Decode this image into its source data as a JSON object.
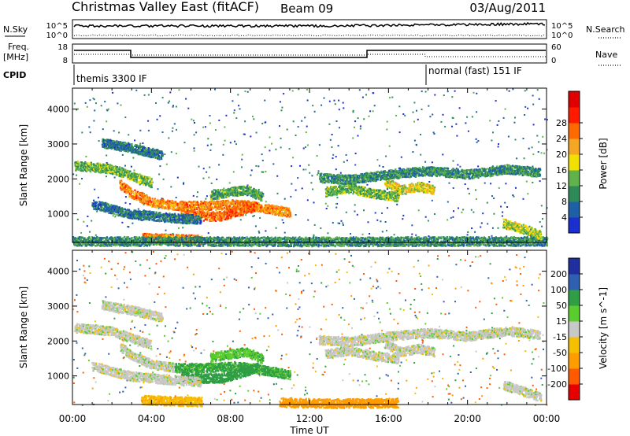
{
  "header": {
    "station": "Christmas Valley East (fitACF)",
    "beam": "Beam 09",
    "date": "03/Aug/2011"
  },
  "strips": {
    "nsky_label": "N.Sky",
    "nsky_ticks": [
      "10^5",
      "10^0"
    ],
    "nsearch_label": "N.Search",
    "nsearch_ticks": [
      "10^5",
      "10^0"
    ],
    "freq_label_1": "Freq.",
    "freq_label_2": "[MHz]",
    "freq_ticks": [
      "18",
      "8"
    ],
    "nave_label": "Nave",
    "nave_ticks": [
      "60",
      "0"
    ],
    "cpid_label": "CPID",
    "modes": [
      {
        "label": "themis 3300 IF"
      },
      {
        "label": "normal (fast) 151 IF"
      }
    ]
  },
  "time_axis": {
    "xlabel": "Time UT",
    "ticks": [
      "00:00",
      "04:00",
      "08:00",
      "12:00",
      "16:00",
      "20:00",
      "00:00"
    ]
  },
  "colors": {
    "power": [
      "#1a2fd0",
      "#1f5fa8",
      "#2e8b57",
      "#5fb34a",
      "#f2e000",
      "#f5a623",
      "#ff6a00",
      "#ff1a00",
      "#e00000"
    ],
    "velocity": [
      "#e60000",
      "#ff5a00",
      "#ff9d00",
      "#f5c000",
      "#c8c8c8",
      "#5bcc2e",
      "#2f9e44",
      "#2f5fb0",
      "#1f2fa0"
    ]
  },
  "chart_data": [
    {
      "type": "heatmap",
      "name": "power",
      "xlabel": "",
      "ylabel": "Slant Range [km]",
      "xlim": [
        0,
        24
      ],
      "ylim": [
        180,
        4600
      ],
      "yticks": [
        1000,
        2000,
        3000,
        4000
      ],
      "ytick_labels": [
        "1000",
        "2000",
        "3000",
        "4000"
      ],
      "colorbar": {
        "label": "Power [dB]",
        "ticks": [
          4,
          8,
          12,
          16,
          20,
          24,
          28
        ],
        "tick_labels": [
          "4",
          "8",
          "12",
          "16",
          "20",
          "24",
          "28"
        ],
        "range": [
          0,
          32
        ]
      },
      "bands": [
        {
          "t": [
            0.1,
            2.0,
            4.0
          ],
          "r": [
            2400,
            2300,
            1900
          ],
          "val": 14
        },
        {
          "t": [
            2.4,
            3.0,
            4.0,
            5.2,
            7.0,
            8.2,
            9.0,
            10.0,
            11.0
          ],
          "r": [
            1850,
            1600,
            1350,
            1250,
            1250,
            1300,
            1250,
            1150,
            1050
          ],
          "val": 24
        },
        {
          "t": [
            5.5,
            6.5,
            7.5,
            8.5,
            9.3
          ],
          "r": [
            1000,
            950,
            950,
            1100,
            1250
          ],
          "val": 26
        },
        {
          "t": [
            7.0,
            8.0,
            8.8,
            9.6
          ],
          "r": [
            1550,
            1650,
            1700,
            1500
          ],
          "val": 12
        },
        {
          "t": [
            1.0,
            3.0,
            5.0,
            6.5
          ],
          "r": [
            1300,
            1000,
            900,
            850
          ],
          "val": 8
        },
        {
          "t": [
            3.5,
            5.0,
            6.5
          ],
          "r": [
            330,
            300,
            280
          ],
          "val": 24
        },
        {
          "t": [
            0.0,
            6.0,
            12.0,
            18.0,
            24.0
          ],
          "r": [
            230,
            230,
            220,
            230,
            230
          ],
          "val": 10
        },
        {
          "t": [
            12.8,
            14.0,
            15.2,
            16.5
          ],
          "r": [
            1650,
            1750,
            1600,
            1500
          ],
          "val": 14
        },
        {
          "t": [
            15.8,
            16.6,
            17.5,
            18.3
          ],
          "r": [
            1950,
            1700,
            1800,
            1700
          ],
          "val": 18
        },
        {
          "t": [
            12.5,
            14.0,
            16.0,
            18.0,
            20.0,
            22.0,
            23.6
          ],
          "r": [
            2050,
            2000,
            2150,
            2250,
            2150,
            2300,
            2200
          ],
          "val": 10
        },
        {
          "t": [
            21.8,
            22.4,
            23.0,
            23.7
          ],
          "r": [
            750,
            650,
            550,
            400
          ],
          "val": 16
        },
        {
          "t": [
            1.5,
            3.0,
            4.5
          ],
          "r": [
            3050,
            2900,
            2700
          ],
          "val": 8
        }
      ]
    },
    {
      "type": "heatmap",
      "name": "velocity",
      "xlabel": "Time UT",
      "ylabel": "Slant Range [km]",
      "xlim": [
        0,
        24
      ],
      "ylim": [
        180,
        4600
      ],
      "yticks": [
        1000,
        2000,
        3000,
        4000
      ],
      "ytick_labels": [
        "1000",
        "2000",
        "3000",
        "4000"
      ],
      "colorbar": {
        "label": "Velocity [m s^-1]",
        "ticks": [
          -200,
          -100,
          -50,
          -15,
          15,
          50,
          100,
          200
        ],
        "tick_labels": [
          "-200",
          "-100",
          "-50",
          "-15",
          "15",
          "50",
          "100",
          "200"
        ],
        "range": [
          -250,
          250
        ]
      },
      "bands": [
        {
          "t": [
            0.1,
            2.0,
            4.0
          ],
          "r": [
            2400,
            2300,
            1900
          ],
          "val": 0
        },
        {
          "t": [
            2.4,
            3.0,
            4.0,
            5.2
          ],
          "r": [
            1850,
            1600,
            1350,
            1250
          ],
          "val": 0
        },
        {
          "t": [
            5.2,
            7.0,
            8.2,
            9.0,
            10.0,
            11.0
          ],
          "r": [
            1250,
            1250,
            1300,
            1250,
            1150,
            1050
          ],
          "val": 60
        },
        {
          "t": [
            5.5,
            6.5,
            7.5,
            8.5,
            9.3
          ],
          "r": [
            1000,
            950,
            950,
            1100,
            1250
          ],
          "val": 70
        },
        {
          "t": [
            7.0,
            8.0,
            8.8,
            9.6
          ],
          "r": [
            1550,
            1650,
            1700,
            1500
          ],
          "val": 40
        },
        {
          "t": [
            1.0,
            3.0,
            5.0,
            6.5
          ],
          "r": [
            1300,
            1000,
            900,
            850
          ],
          "val": 0
        },
        {
          "t": [
            3.5,
            5.0,
            6.5
          ],
          "r": [
            330,
            300,
            280
          ],
          "val": -40
        },
        {
          "t": [
            10.5,
            12.0,
            13.5,
            15.0,
            16.5
          ],
          "r": [
            260,
            240,
            230,
            240,
            250
          ],
          "val": -70
        },
        {
          "t": [
            12.8,
            14.0,
            15.2,
            16.5
          ],
          "r": [
            1650,
            1750,
            1600,
            1500
          ],
          "val": 0
        },
        {
          "t": [
            15.8,
            16.6,
            17.5,
            18.3
          ],
          "r": [
            1950,
            1700,
            1800,
            1700
          ],
          "val": 0
        },
        {
          "t": [
            12.5,
            14.0,
            16.0,
            18.0,
            20.0,
            22.0,
            23.6
          ],
          "r": [
            2050,
            2000,
            2150,
            2250,
            2150,
            2300,
            2200
          ],
          "val": 0
        },
        {
          "t": [
            21.8,
            22.4,
            23.0,
            23.7
          ],
          "r": [
            750,
            650,
            550,
            400
          ],
          "val": 0
        },
        {
          "t": [
            1.5,
            3.0,
            4.5
          ],
          "r": [
            3050,
            2900,
            2700
          ],
          "val": 0
        }
      ]
    }
  ]
}
